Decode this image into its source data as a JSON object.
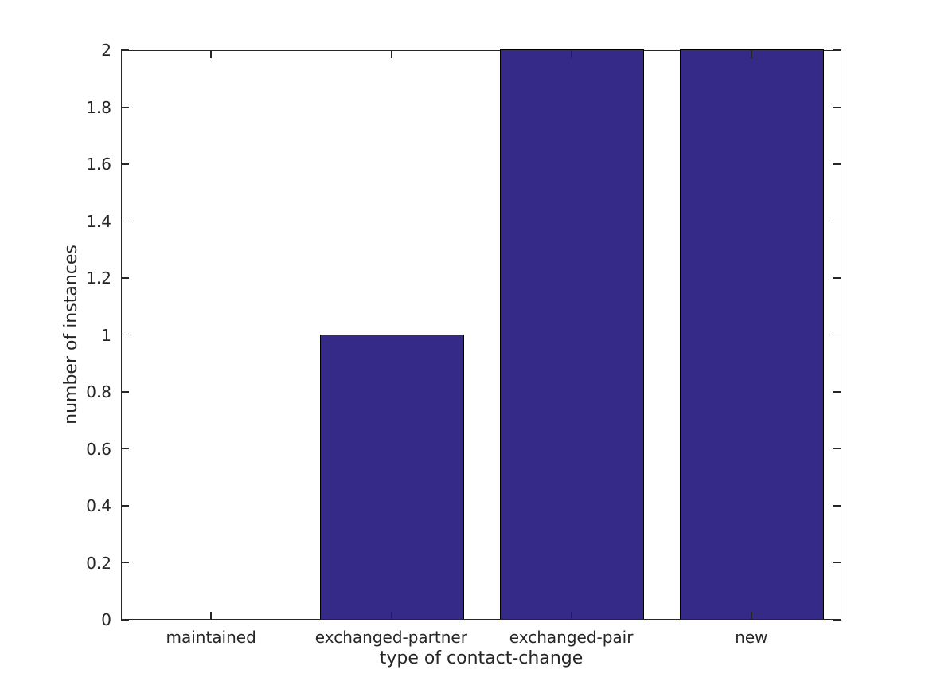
{
  "chart_data": {
    "type": "bar",
    "title": "",
    "xlabel": "type of contact-change",
    "ylabel": "number of instances",
    "categories": [
      "maintained",
      "exchanged-partner",
      "exchanged-pair",
      "new"
    ],
    "values": [
      0,
      1,
      2,
      2
    ],
    "ylim": [
      0,
      2
    ],
    "yticks": [
      0,
      0.2,
      0.4,
      0.6,
      0.8,
      1,
      1.2,
      1.4,
      1.6,
      1.8,
      2
    ],
    "ytick_labels": [
      "0",
      "0.2",
      "0.4",
      "0.6",
      "0.8",
      "1",
      "1.2",
      "1.4",
      "1.6",
      "1.8",
      "2"
    ],
    "bar_width_fraction": 0.8,
    "bar_color": "#352A87",
    "bar_edge_color": "#000000",
    "axis_color": "#262626",
    "background_color": "#ffffff",
    "grid": false,
    "legend": null,
    "tick_direction": "in",
    "box": true
  }
}
